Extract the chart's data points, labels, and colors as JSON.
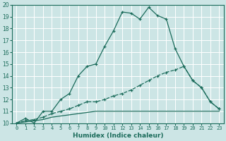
{
  "xlabel": "Humidex (Indice chaleur)",
  "xlim": [
    -0.5,
    23.5
  ],
  "ylim": [
    10,
    20
  ],
  "xticks": [
    0,
    1,
    2,
    3,
    4,
    5,
    6,
    7,
    8,
    9,
    10,
    11,
    12,
    13,
    14,
    15,
    16,
    17,
    18,
    19,
    20,
    21,
    22,
    23
  ],
  "yticks": [
    10,
    11,
    12,
    13,
    14,
    15,
    16,
    17,
    18,
    19,
    20
  ],
  "bg_color": "#cce5e5",
  "line_color": "#1a6b5a",
  "grid_color": "#b0d0d0",
  "line1_x": [
    0,
    1,
    2,
    3,
    4,
    5,
    6,
    7,
    8,
    9,
    10,
    11,
    12,
    13,
    14,
    15,
    16,
    17,
    18,
    19,
    20,
    21,
    22,
    23
  ],
  "line1_y": [
    10.0,
    10.4,
    10.0,
    11.0,
    11.0,
    12.0,
    12.5,
    14.0,
    14.8,
    15.0,
    16.5,
    17.8,
    19.4,
    19.3,
    18.8,
    19.8,
    19.1,
    18.8,
    16.3,
    14.8,
    13.6,
    13.0,
    11.8,
    11.2
  ],
  "line2_x": [
    0,
    1,
    2,
    3,
    4,
    5,
    6,
    7,
    8,
    9,
    10,
    11,
    12,
    13,
    14,
    15,
    16,
    17,
    18,
    19,
    20,
    21,
    22,
    23
  ],
  "line2_y": [
    10.0,
    10.2,
    10.3,
    10.5,
    10.8,
    11.0,
    11.2,
    11.5,
    11.8,
    11.8,
    12.0,
    12.3,
    12.5,
    12.8,
    13.2,
    13.6,
    14.0,
    14.3,
    14.5,
    14.8,
    13.6,
    13.0,
    11.8,
    11.2
  ],
  "line3_x": [
    0,
    1,
    2,
    3,
    4,
    5,
    6,
    7,
    8,
    9,
    10,
    11,
    12,
    13,
    14,
    15,
    16,
    17,
    18,
    19,
    20,
    21,
    22,
    23
  ],
  "line3_y": [
    10.0,
    10.1,
    10.2,
    10.3,
    10.5,
    10.6,
    10.7,
    10.8,
    10.9,
    11.0,
    11.0,
    11.0,
    11.0,
    11.0,
    11.0,
    11.0,
    11.0,
    11.0,
    11.0,
    11.0,
    11.0,
    11.0,
    11.0,
    11.0
  ]
}
